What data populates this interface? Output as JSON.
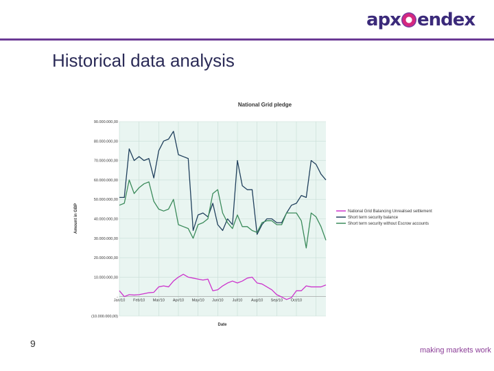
{
  "header": {
    "logo_text_left": "apx",
    "logo_text_right": "endex",
    "title": "Historical data analysis"
  },
  "footer": {
    "page_number": "9",
    "tagline": "making markets work"
  },
  "colors": {
    "accent": "#6b3a95",
    "plot_bg": "#e9f5f1",
    "series": [
      "#cc33cc",
      "#1f3f5c",
      "#3a8a5a"
    ]
  },
  "chart_data": {
    "type": "line",
    "title": "National Grid pledge",
    "xlabel": "Date",
    "ylabel": "Amount in GBP",
    "ylim": [
      -10000000,
      90000000
    ],
    "yticks": [
      -10000000,
      0,
      10000000,
      20000000,
      30000000,
      40000000,
      50000000,
      60000000,
      70000000,
      80000000,
      90000000
    ],
    "ytick_labels": [
      "(10.000.000,00)",
      "-",
      "10.000.000,00",
      "20.000.000,00",
      "30.000.000,00",
      "40.000.000,00",
      "50.000.000,00",
      "60.000.000,00",
      "70.000.000,00",
      "80.000.000,00",
      "90.000.000,00"
    ],
    "xtick_labels": [
      "Jan/10",
      "Feb/10",
      "Mar/10",
      "Apr/10",
      "May/10",
      "Jun/10",
      "Jul/10",
      "Aug/10",
      "Sep/10",
      "Oct/10"
    ],
    "x_range": [
      0,
      10.5
    ],
    "grid": true,
    "legend_position": "right",
    "series": [
      {
        "name": "National Grid Balancing Unrealised settlement",
        "color": "#cc33cc",
        "x": [
          0,
          0.25,
          0.5,
          0.75,
          1,
          1.25,
          1.5,
          1.75,
          2,
          2.25,
          2.5,
          2.75,
          3,
          3.25,
          3.5,
          3.75,
          4,
          4.25,
          4.5,
          4.75,
          5,
          5.25,
          5.5,
          5.75,
          6,
          6.25,
          6.5,
          6.75,
          7,
          7.25,
          7.5,
          7.75,
          8,
          8.25,
          8.5,
          8.75,
          9,
          9.25,
          9.5,
          9.75,
          10,
          10.25,
          10.5
        ],
        "values": [
          3000000,
          0,
          1000000,
          800000,
          1000000,
          1500000,
          2000000,
          2200000,
          5000000,
          5500000,
          5000000,
          8000000,
          10000000,
          11500000,
          10000000,
          9500000,
          9000000,
          8500000,
          9000000,
          3000000,
          3500000,
          5500000,
          7000000,
          8000000,
          7000000,
          8000000,
          9500000,
          10000000,
          7000000,
          6500000,
          5000000,
          3500000,
          1000000,
          -200000,
          -1500000,
          -500000,
          3000000,
          3000000,
          5500000,
          5000000,
          5000000,
          5000000,
          6000000
        ]
      },
      {
        "name": "Short term security balance",
        "color": "#1f3f5c",
        "x": [
          0,
          0.25,
          0.5,
          0.75,
          1,
          1.25,
          1.5,
          1.75,
          2,
          2.25,
          2.5,
          2.75,
          3,
          3.25,
          3.5,
          3.75,
          4,
          4.25,
          4.5,
          4.75,
          5,
          5.25,
          5.5,
          5.75,
          6,
          6.25,
          6.5,
          6.75,
          7,
          7.25,
          7.5,
          7.75,
          8,
          8.25,
          8.5,
          8.75,
          9,
          9.25,
          9.5,
          9.75,
          10,
          10.25,
          10.5
        ],
        "values": [
          51000000,
          51000000,
          76000000,
          70000000,
          72000000,
          70000000,
          71000000,
          61000000,
          75000000,
          80000000,
          81000000,
          85000000,
          73000000,
          72000000,
          71000000,
          34000000,
          42000000,
          43000000,
          41000000,
          48000000,
          37000000,
          34000000,
          40000000,
          37000000,
          70000000,
          57000000,
          55000000,
          55000000,
          32000000,
          37000000,
          40000000,
          40000000,
          38000000,
          38000000,
          43000000,
          47000000,
          48000000,
          52000000,
          51000000,
          70000000,
          68000000,
          63000000,
          60000000
        ]
      },
      {
        "name": "Short term security without Escrow accounts",
        "color": "#3a8a5a",
        "x": [
          0,
          0.25,
          0.5,
          0.75,
          1,
          1.25,
          1.5,
          1.75,
          2,
          2.25,
          2.5,
          2.75,
          3,
          3.25,
          3.5,
          3.75,
          4,
          4.25,
          4.5,
          4.75,
          5,
          5.25,
          5.5,
          5.75,
          6,
          6.25,
          6.5,
          6.75,
          7,
          7.25,
          7.5,
          7.75,
          8,
          8.25,
          8.5,
          8.75,
          9,
          9.25,
          9.5,
          9.75,
          10,
          10.25,
          10.5
        ],
        "values": [
          47000000,
          48000000,
          60000000,
          53000000,
          56000000,
          58000000,
          59000000,
          49000000,
          45000000,
          44000000,
          45000000,
          50000000,
          37000000,
          36000000,
          35000000,
          30000000,
          37000000,
          38000000,
          40000000,
          53000000,
          55000000,
          43000000,
          38000000,
          35000000,
          42000000,
          36000000,
          36000000,
          34000000,
          33000000,
          38000000,
          39000000,
          39000000,
          37000000,
          37000000,
          43000000,
          43000000,
          43000000,
          39000000,
          25000000,
          43000000,
          41000000,
          36000000,
          29000000
        ]
      }
    ]
  }
}
